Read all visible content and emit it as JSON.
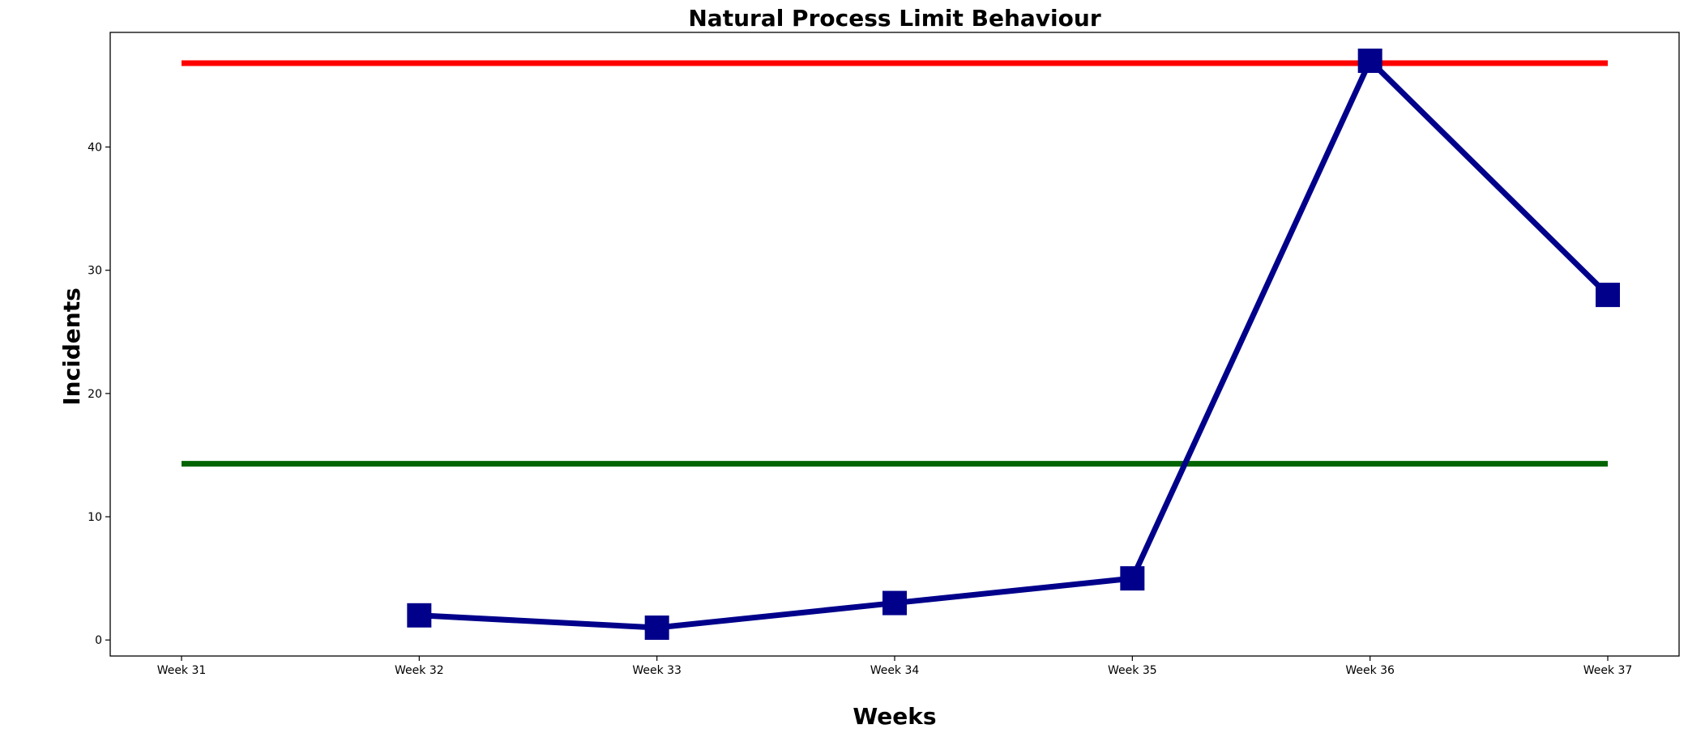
{
  "chart_data": {
    "type": "line",
    "title": "Natural Process Limit Behaviour",
    "xlabel": "Weeks",
    "ylabel": "Incidents",
    "categories": [
      "Week 31",
      "Week 32",
      "Week 33",
      "Week 34",
      "Week 35",
      "Week 36",
      "Week 37"
    ],
    "ylim": [
      -1.3,
      49.3
    ],
    "yticks": [
      0,
      10,
      20,
      30,
      40
    ],
    "grid": false,
    "legend": "none",
    "series": [
      {
        "values": [
          null,
          2,
          1,
          3,
          5,
          47,
          28
        ],
        "color": "#00008b",
        "marker": "square"
      }
    ],
    "reference_lines": [
      {
        "y": 46.8,
        "color": "#ff0000"
      },
      {
        "y": 14.3,
        "color": "#006400"
      }
    ]
  }
}
